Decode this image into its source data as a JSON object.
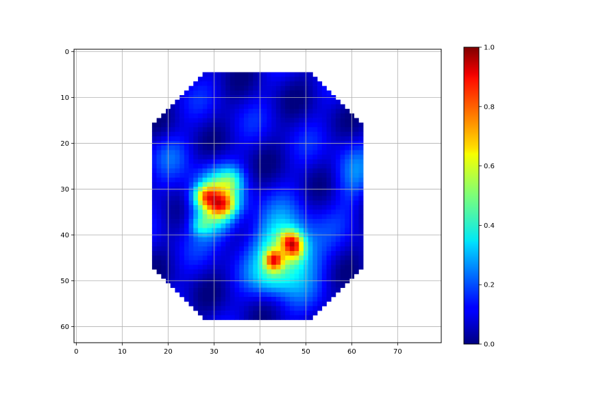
{
  "chart_data": {
    "type": "heatmap",
    "title": "",
    "xlabel": "",
    "ylabel": "",
    "xlim": [
      -0.5,
      79.5
    ],
    "ylim": [
      63.5,
      -0.5
    ],
    "y_axis_inverted": true,
    "grid": true,
    "colormap": "jet",
    "x_ticks": [
      0,
      10,
      20,
      30,
      40,
      50,
      60,
      70
    ],
    "y_ticks": [
      0,
      10,
      20,
      30,
      40,
      50,
      60
    ],
    "colorbar": {
      "range": [
        0.0,
        1.0
      ],
      "ticks": [
        "0.0",
        "0.2",
        "0.4",
        "0.6",
        "0.8",
        "1.0"
      ]
    },
    "mask": {
      "shape": "octagon",
      "x_range": [
        17,
        62
      ],
      "y_range": [
        5,
        58
      ],
      "corner_cut": 11
    },
    "background_level": 0.08,
    "hotspots": [
      {
        "x": 30.5,
        "y": 33,
        "sx": 3.5,
        "sy": 4.5,
        "value": 0.55
      },
      {
        "x": 28,
        "y": 31.5,
        "sx": 1.8,
        "sy": 1.6,
        "value": 0.3
      },
      {
        "x": 32,
        "y": 33.5,
        "sx": 2.0,
        "sy": 1.6,
        "value": 0.25
      },
      {
        "x": 34,
        "y": 28,
        "sx": 1.8,
        "sy": 2.0,
        "value": 0.15
      },
      {
        "x": 45.5,
        "y": 44,
        "sx": 4.5,
        "sy": 5.5,
        "value": 0.45
      },
      {
        "x": 43,
        "y": 45.5,
        "sx": 1.4,
        "sy": 1.6,
        "value": 0.45
      },
      {
        "x": 47.5,
        "y": 42.5,
        "sx": 1.6,
        "sy": 2.0,
        "value": 0.45
      },
      {
        "x": 46,
        "y": 41,
        "sx": 1.5,
        "sy": 1.5,
        "value": 0.2
      },
      {
        "x": 27,
        "y": 38,
        "sx": 1.5,
        "sy": 1.5,
        "value": 0.15
      },
      {
        "x": 60,
        "y": 27,
        "sx": 3.0,
        "sy": 5.0,
        "value": 0.12
      },
      {
        "x": 20,
        "y": 22,
        "sx": 3.0,
        "sy": 3.0,
        "value": 0.08
      },
      {
        "x": 42,
        "y": 50,
        "sx": 3.0,
        "sy": 2.5,
        "value": 0.1
      }
    ]
  },
  "colors": {
    "grid": "#b0b0b0",
    "axes": "#000000",
    "background": "#ffffff"
  }
}
